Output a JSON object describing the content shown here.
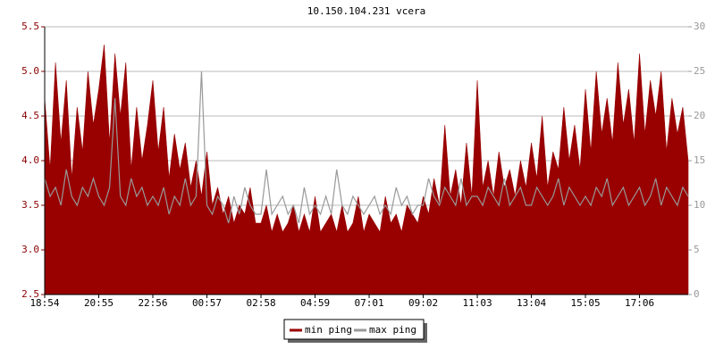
{
  "chart_data": {
    "type": "area",
    "title": "10.150.104.231 vcera",
    "categories": [
      "18:54",
      null,
      null,
      null,
      null,
      null,
      null,
      null,
      null,
      null,
      "20:55",
      null,
      null,
      null,
      null,
      null,
      null,
      null,
      null,
      null,
      "22:56",
      null,
      null,
      null,
      null,
      null,
      null,
      null,
      null,
      null,
      "00:57",
      null,
      null,
      null,
      null,
      null,
      null,
      null,
      null,
      null,
      "02:58",
      null,
      null,
      null,
      null,
      null,
      null,
      null,
      null,
      null,
      "04:59",
      null,
      null,
      null,
      null,
      null,
      null,
      null,
      null,
      null,
      "07:01",
      null,
      null,
      null,
      null,
      null,
      null,
      null,
      null,
      null,
      "09:02",
      null,
      null,
      null,
      null,
      null,
      null,
      null,
      null,
      null,
      "11:03",
      null,
      null,
      null,
      null,
      null,
      null,
      null,
      null,
      null,
      "13:04",
      null,
      null,
      null,
      null,
      null,
      null,
      null,
      null,
      null,
      "15:05",
      null,
      null,
      null,
      null,
      null,
      null,
      null,
      null,
      null,
      "17:06",
      null,
      null,
      null,
      null,
      null,
      null,
      null,
      null,
      null
    ],
    "series": [
      {
        "name": "min ping",
        "color": "#990000",
        "axis": "y",
        "values": [
          4.7,
          3.9,
          5.1,
          4.2,
          4.9,
          3.8,
          4.6,
          4.1,
          5.0,
          4.4,
          4.8,
          5.3,
          4.2,
          5.2,
          4.5,
          5.1,
          3.9,
          4.6,
          4.0,
          4.4,
          4.9,
          4.1,
          4.6,
          3.8,
          4.3,
          3.9,
          4.2,
          3.7,
          4.0,
          3.6,
          4.1,
          3.5,
          3.7,
          3.4,
          3.6,
          3.3,
          3.5,
          3.4,
          3.7,
          3.3,
          3.3,
          3.5,
          3.2,
          3.4,
          3.2,
          3.3,
          3.5,
          3.2,
          3.4,
          3.2,
          3.6,
          3.2,
          3.3,
          3.4,
          3.2,
          3.5,
          3.2,
          3.3,
          3.6,
          3.2,
          3.4,
          3.3,
          3.2,
          3.6,
          3.3,
          3.4,
          3.2,
          3.5,
          3.4,
          3.3,
          3.6,
          3.4,
          3.8,
          3.5,
          4.4,
          3.6,
          3.9,
          3.5,
          4.2,
          3.6,
          4.9,
          3.7,
          4.0,
          3.6,
          4.1,
          3.7,
          3.9,
          3.6,
          4.0,
          3.7,
          4.2,
          3.8,
          4.5,
          3.7,
          4.1,
          3.9,
          4.6,
          4.0,
          4.4,
          3.9,
          4.8,
          4.1,
          5.0,
          4.3,
          4.7,
          4.2,
          5.1,
          4.4,
          4.8,
          4.2,
          5.2,
          4.3,
          4.9,
          4.5,
          5.0,
          4.1,
          4.7,
          4.3,
          4.6,
          4.0
        ]
      },
      {
        "name": "max ping",
        "color": "#999999",
        "axis": "y2",
        "values": [
          13,
          11,
          12,
          10,
          14,
          11,
          10,
          12,
          11,
          13,
          11,
          10,
          12,
          22,
          11,
          10,
          13,
          11,
          12,
          10,
          11,
          10,
          12,
          9,
          11,
          10,
          13,
          10,
          11,
          25,
          10,
          9,
          11,
          10,
          8,
          11,
          9,
          12,
          10,
          9,
          9,
          14,
          9,
          10,
          11,
          9,
          10,
          8,
          12,
          9,
          10,
          9,
          11,
          9,
          14,
          10,
          9,
          11,
          10,
          9,
          10,
          11,
          9,
          10,
          9,
          12,
          10,
          11,
          9,
          10,
          10,
          13,
          11,
          10,
          12,
          11,
          10,
          13,
          10,
          11,
          11,
          10,
          12,
          11,
          10,
          13,
          10,
          11,
          12,
          10,
          10,
          12,
          11,
          10,
          11,
          13,
          10,
          12,
          11,
          10,
          11,
          10,
          12,
          11,
          13,
          10,
          11,
          12,
          10,
          11,
          12,
          10,
          11,
          13,
          10,
          12,
          11,
          10,
          12,
          11
        ]
      }
    ],
    "ylim": [
      2.5,
      5.5
    ],
    "yticks": [
      2.5,
      {
        "value": 3,
        "label": "3.0"
      },
      3.5,
      {
        "value": 4,
        "label": "4.0"
      },
      4.5,
      {
        "value": 5,
        "label": "5.0"
      },
      5.5
    ],
    "y2lim": [
      0,
      30
    ],
    "y2ticks": [
      0,
      5,
      10,
      15,
      20,
      25,
      30
    ],
    "grid": true
  }
}
